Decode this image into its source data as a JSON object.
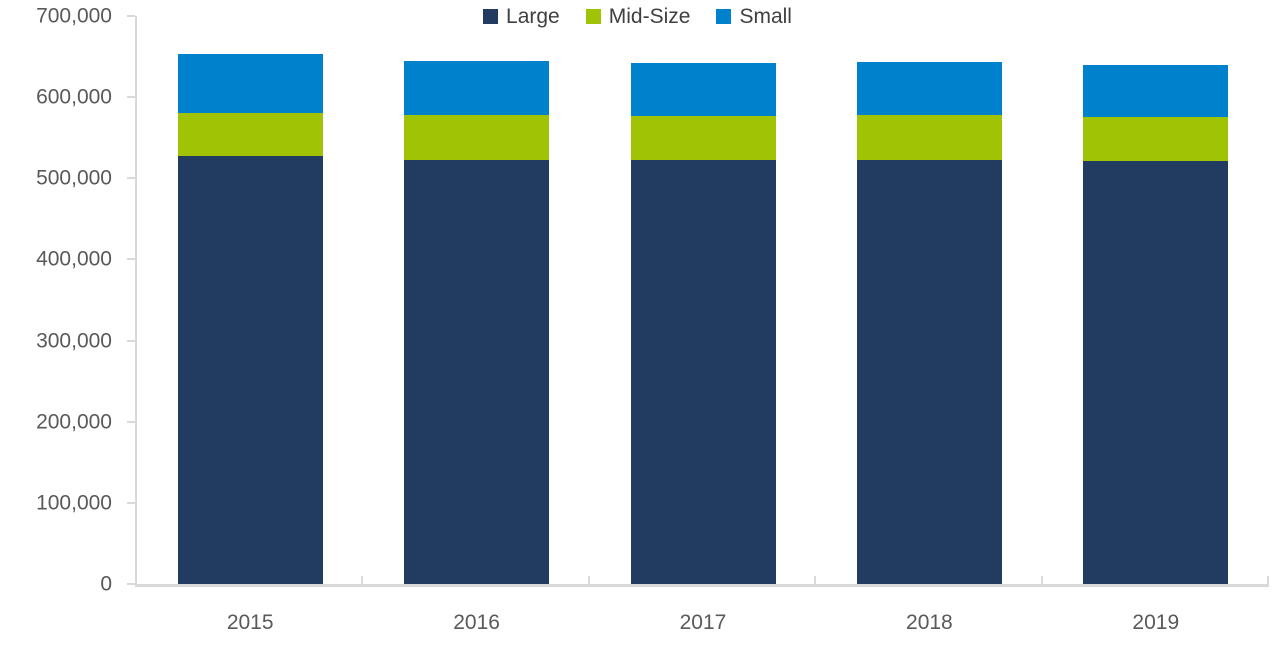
{
  "chart_data": {
    "type": "bar",
    "stacked": true,
    "title": "",
    "categories": [
      "2015",
      "2016",
      "2017",
      "2018",
      "2019"
    ],
    "series": [
      {
        "name": "Large",
        "color": "#223C61",
        "values": [
          527000,
          523000,
          522000,
          522000,
          521000
        ]
      },
      {
        "name": "Mid-Size",
        "color": "#A0C306",
        "values": [
          54000,
          55000,
          55000,
          56000,
          55000
        ]
      },
      {
        "name": "Small",
        "color": "#0081CB",
        "values": [
          72000,
          67000,
          65000,
          65000,
          63000
        ]
      }
    ],
    "totals": [
      653000,
      645000,
      642000,
      643000,
      639000
    ],
    "xlabel": "",
    "ylabel": "",
    "ylim": [
      0,
      700000
    ],
    "y_tick_interval": 100000,
    "y_tick_labels": [
      "0",
      "100,000",
      "200,000",
      "300,000",
      "400,000",
      "500,000",
      "600,000",
      "700,000"
    ],
    "legend_position": "top-center",
    "grid": false,
    "axis_color": "#d9d9d9",
    "tick_label_color": "#595959",
    "legend_text_color": "#404040"
  }
}
